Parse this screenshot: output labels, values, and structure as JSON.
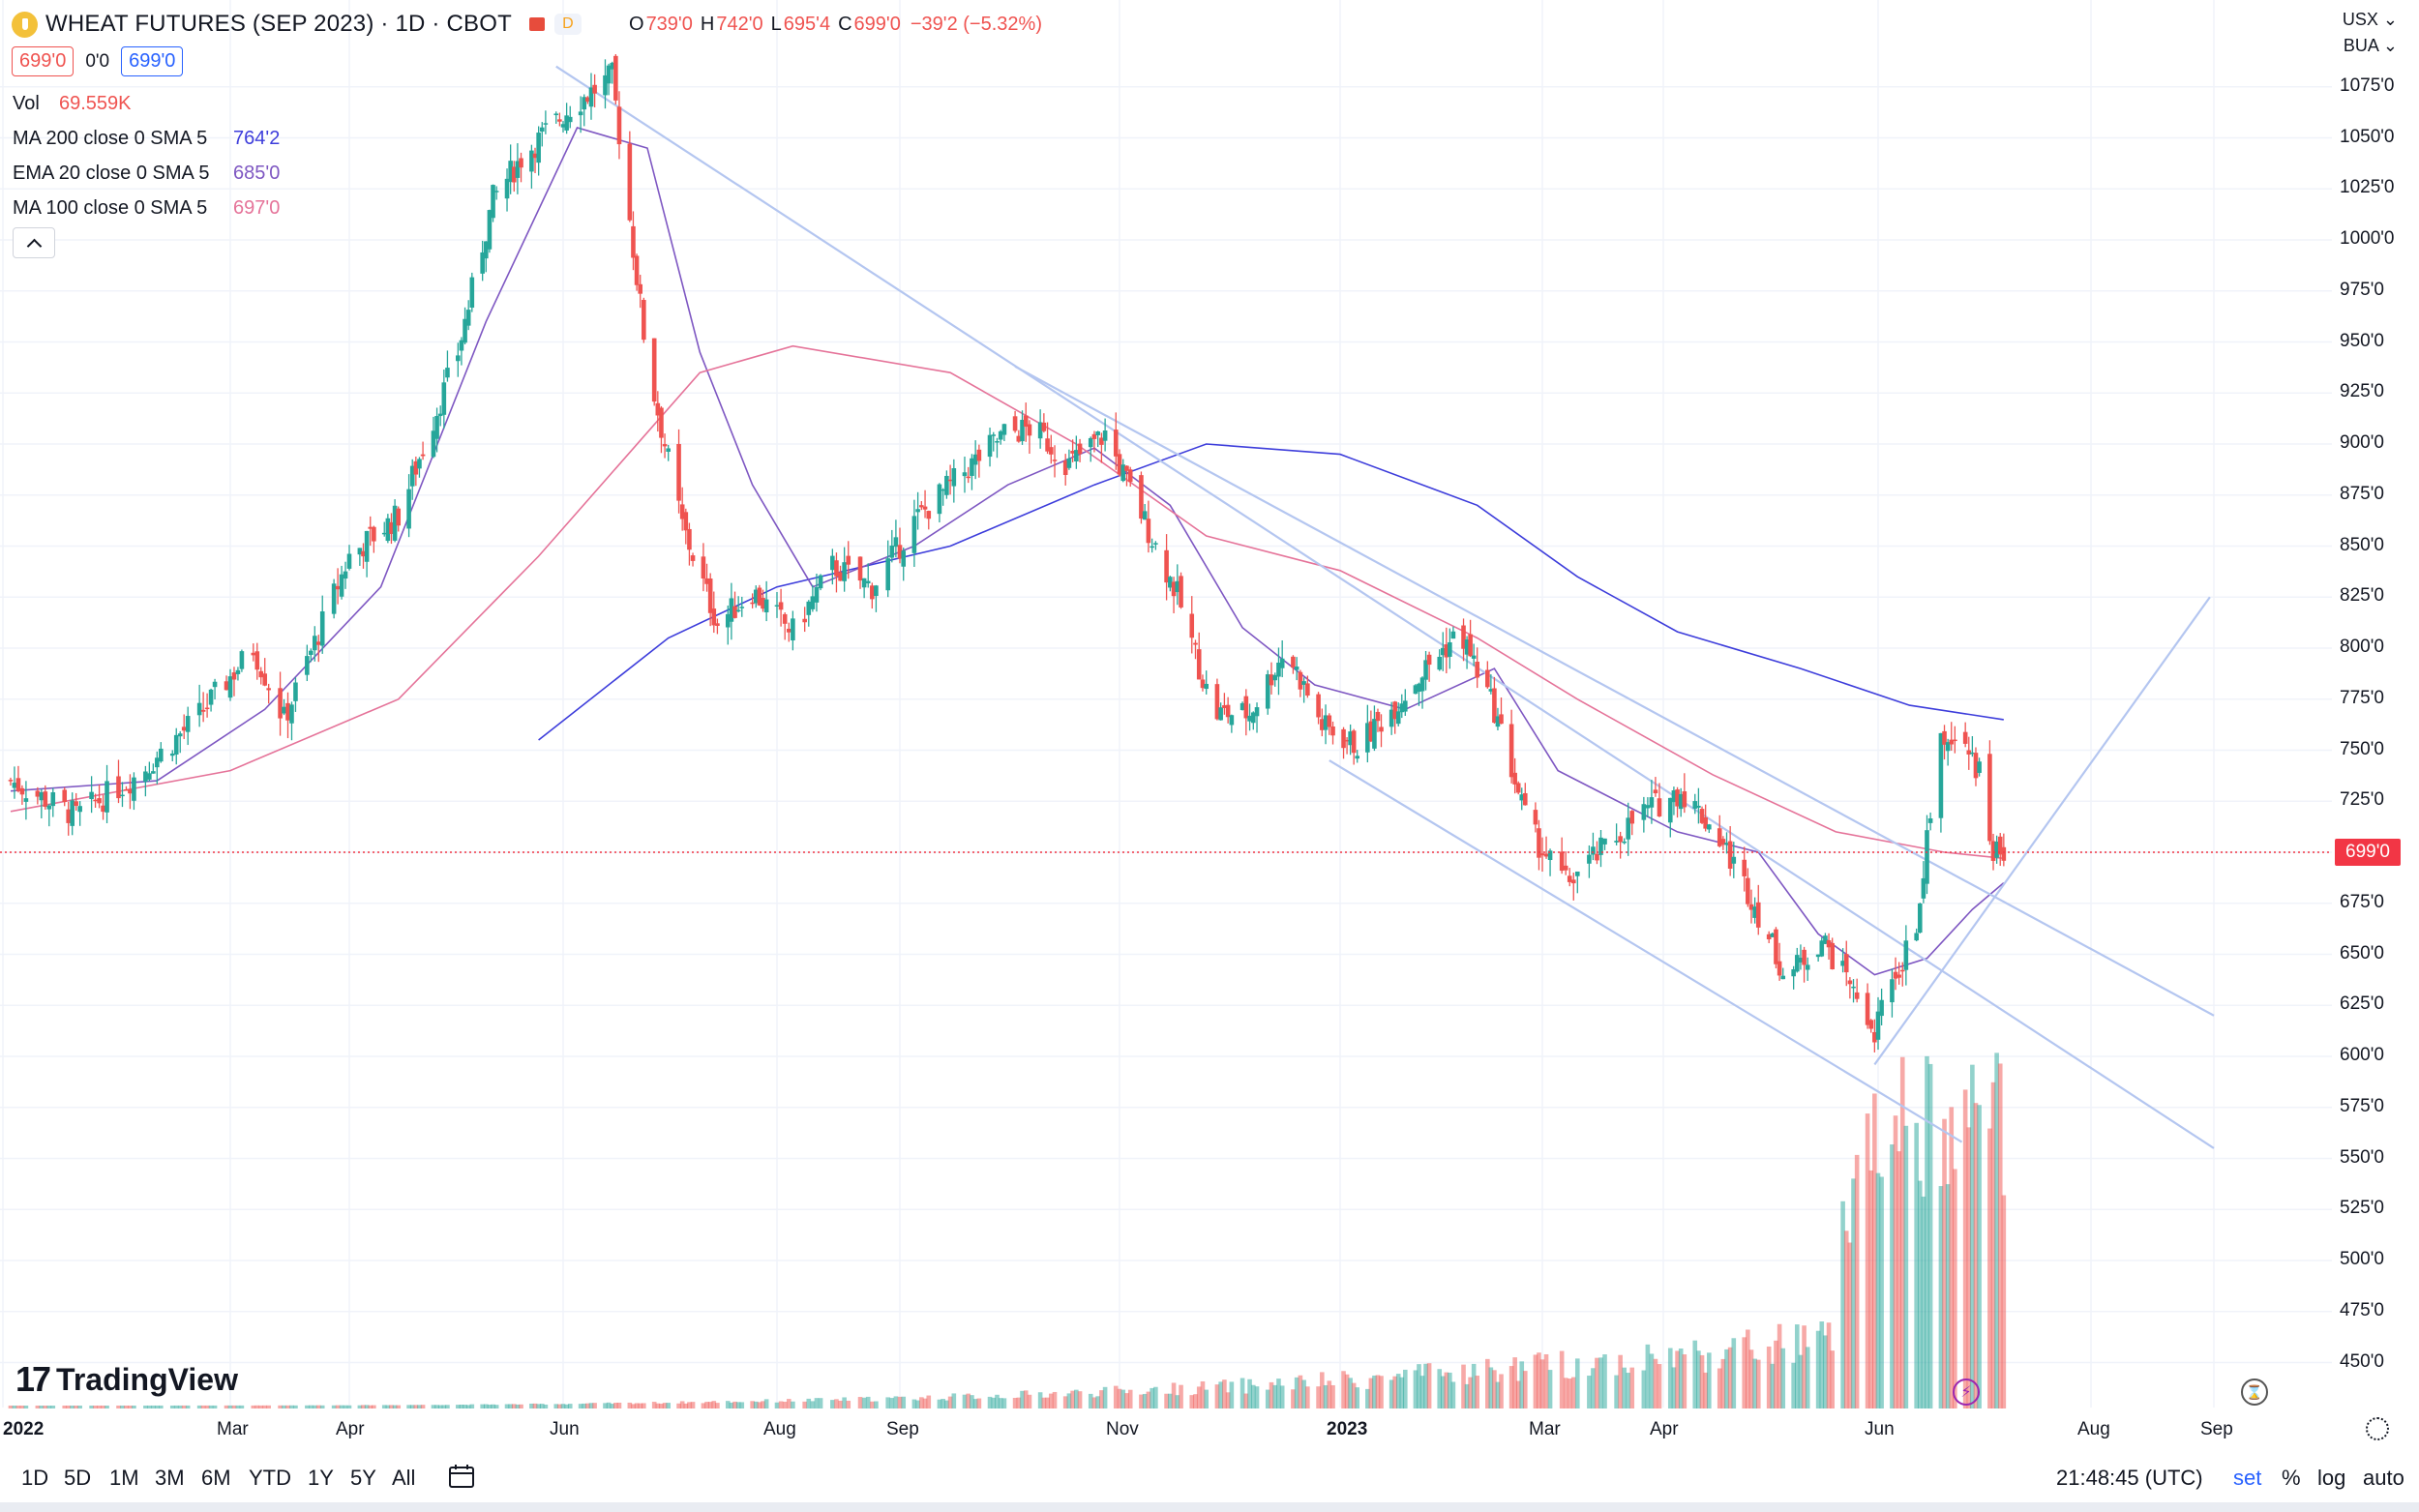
{
  "header": {
    "title": "WHEAT FUTURES (SEP 2023) · 1D · CBOT",
    "badge_letter": "D",
    "ohlc": [
      {
        "label": "O",
        "value": "739'0"
      },
      {
        "label": "H",
        "value": "742'0"
      },
      {
        "label": "L",
        "value": "695'4"
      },
      {
        "label": "C",
        "value": "699'0"
      },
      {
        "label": "",
        "value": "−39'2 (−5.32%)"
      }
    ],
    "bid": "699'0",
    "spread": "0'0",
    "ask": "699'0"
  },
  "indicators": [
    {
      "name": "Vol",
      "value": "69.559K",
      "color": "#ef5350"
    },
    {
      "name": "MA 200 close 0 SMA 5",
      "value": "764'2",
      "color": "#3d3ddb"
    },
    {
      "name": "EMA 20 close 0 SMA 5",
      "value": "685'0",
      "color": "#7e57c2"
    },
    {
      "name": "MA 100 close 0 SMA 5",
      "value": "697'0",
      "color": "#e57399"
    }
  ],
  "price_axis": {
    "currency": "USX",
    "unit": "BUA",
    "ticks": [
      "1075'0",
      "1050'0",
      "1025'0",
      "1000'0",
      "975'0",
      "950'0",
      "925'0",
      "900'0",
      "875'0",
      "850'0",
      "825'0",
      "800'0",
      "775'0",
      "750'0",
      "725'0",
      "700'0",
      "675'0",
      "650'0",
      "625'0",
      "600'0",
      "575'0",
      "550'0",
      "525'0",
      "500'0",
      "475'0",
      "450'0"
    ],
    "last_price_label": "699'0"
  },
  "time_axis": {
    "labels": [
      "2022",
      "Mar",
      "Apr",
      "Jun",
      "Aug",
      "Sep",
      "Nov",
      "2023",
      "Mar",
      "Apr",
      "Jun",
      "Aug",
      "Sep"
    ]
  },
  "branding": {
    "name": "TradingView"
  },
  "bottom_bar": {
    "ranges": [
      "1D",
      "5D",
      "1M",
      "3M",
      "6M",
      "YTD",
      "1Y",
      "5Y",
      "All"
    ],
    "clock": "21:48:45 (UTC)",
    "session": "set",
    "percent": "%",
    "log": "log",
    "auto": "auto"
  },
  "colors": {
    "up": "#26a69a",
    "down": "#ef5350",
    "trendline": "#b4c6f0",
    "grid": "#f0f3fa"
  },
  "chart_data": {
    "type": "candlestick",
    "title": "WHEAT FUTURES (SEP 2023) · 1D · CBOT",
    "y_unit": "USX/BUA",
    "ylim": [
      435,
      1090
    ],
    "grid": true,
    "close_series": {
      "dates": [
        "2022-01-03",
        "2022-01-20",
        "2022-02-05",
        "2022-02-20",
        "2022-03-07",
        "2022-03-15",
        "2022-04-01",
        "2022-04-15",
        "2022-05-02",
        "2022-05-12",
        "2022-05-20",
        "2022-06-03",
        "2022-06-15",
        "2022-06-25",
        "2022-07-05",
        "2022-07-15",
        "2022-07-25",
        "2022-08-05",
        "2022-08-15",
        "2022-08-25",
        "2022-09-05",
        "2022-09-15",
        "2022-09-30",
        "2022-10-08",
        "2022-10-18",
        "2022-10-28",
        "2022-11-07",
        "2022-11-17",
        "2022-11-27",
        "2022-12-07",
        "2022-12-17",
        "2022-12-27",
        "2023-01-06",
        "2023-01-16",
        "2023-01-26",
        "2023-02-05",
        "2023-02-15",
        "2023-02-25",
        "2023-03-07",
        "2023-03-17",
        "2023-03-27",
        "2023-04-06",
        "2023-04-16",
        "2023-04-26",
        "2023-05-06",
        "2023-05-16",
        "2023-05-26",
        "2023-05-31",
        "2023-06-06",
        "2023-06-12",
        "2023-06-18",
        "2023-06-25",
        "2023-06-30",
        "2023-07-04",
        "2023-07-07"
      ],
      "closes": [
        735,
        718,
        738,
        765,
        800,
        765,
        845,
        865,
        945,
        1020,
        1040,
        1065,
        1080,
        940,
        860,
        812,
        828,
        808,
        840,
        830,
        862,
        880,
        905,
        908,
        890,
        905,
        866,
        826,
        768,
        768,
        800,
        762,
        752,
        770,
        790,
        808,
        770,
        712,
        685,
        702,
        720,
        730,
        710,
        678,
        638,
        658,
        628,
        612,
        640,
        665,
        752,
        755,
        738,
        702,
        699
      ]
    },
    "moving_averages": [
      {
        "name": "MA 200 close 0 SMA 5",
        "last": "764'2",
        "points": [
          [
            "2022-05-25",
            755
          ],
          [
            "2022-07-01",
            805
          ],
          [
            "2022-08-01",
            830
          ],
          [
            "2022-09-15",
            850
          ],
          [
            "2022-10-25",
            880
          ],
          [
            "2022-11-25",
            900
          ],
          [
            "2023-01-01",
            895
          ],
          [
            "2023-02-10",
            870
          ],
          [
            "2023-03-10",
            835
          ],
          [
            "2023-04-05",
            808
          ],
          [
            "2023-05-10",
            790
          ],
          [
            "2023-06-10",
            772
          ],
          [
            "2023-07-07",
            765
          ]
        ]
      },
      {
        "name": "EMA 20 close 0 SMA 5",
        "last": "685'0",
        "points": [
          [
            "2022-01-03",
            730
          ],
          [
            "2022-02-10",
            735
          ],
          [
            "2022-03-10",
            770
          ],
          [
            "2022-04-10",
            830
          ],
          [
            "2022-05-10",
            960
          ],
          [
            "2022-06-05",
            1055
          ],
          [
            "2022-06-25",
            1045
          ],
          [
            "2022-07-10",
            945
          ],
          [
            "2022-07-25",
            880
          ],
          [
            "2022-08-10",
            830
          ],
          [
            "2022-09-05",
            850
          ],
          [
            "2022-10-01",
            880
          ],
          [
            "2022-10-25",
            898
          ],
          [
            "2022-11-15",
            870
          ],
          [
            "2022-12-05",
            810
          ],
          [
            "2022-12-25",
            782
          ],
          [
            "2023-01-20",
            770
          ],
          [
            "2023-02-15",
            790
          ],
          [
            "2023-03-05",
            740
          ],
          [
            "2023-04-05",
            710
          ],
          [
            "2023-04-28",
            700
          ],
          [
            "2023-05-15",
            660
          ],
          [
            "2023-05-31",
            640
          ],
          [
            "2023-06-15",
            648
          ],
          [
            "2023-06-28",
            672
          ],
          [
            "2023-07-07",
            685
          ]
        ]
      },
      {
        "name": "MA 100 close 0 SMA 5",
        "last": "697'0",
        "points": [
          [
            "2022-01-03",
            720
          ],
          [
            "2022-03-01",
            740
          ],
          [
            "2022-04-15",
            775
          ],
          [
            "2022-05-25",
            845
          ],
          [
            "2022-07-10",
            935
          ],
          [
            "2022-08-05",
            948
          ],
          [
            "2022-09-15",
            935
          ],
          [
            "2022-10-20",
            900
          ],
          [
            "2022-11-25",
            855
          ],
          [
            "2023-01-01",
            838
          ],
          [
            "2023-02-10",
            805
          ],
          [
            "2023-03-10",
            775
          ],
          [
            "2023-04-15",
            738
          ],
          [
            "2023-05-20",
            710
          ],
          [
            "2023-06-20",
            700
          ],
          [
            "2023-07-07",
            697
          ]
        ]
      }
    ],
    "trendlines": [
      {
        "from": [
          "2022-05-30",
          1085
        ],
        "to": [
          "2023-09-01",
          555
        ]
      },
      {
        "from": [
          "2022-10-03",
          938
        ],
        "to": [
          "2023-09-01",
          620
        ]
      },
      {
        "from": [
          "2022-12-29",
          745
        ],
        "to": [
          "2023-06-25",
          558
        ]
      },
      {
        "from": [
          "2023-05-31",
          596
        ],
        "to": [
          "2023-08-31",
          825
        ]
      }
    ],
    "volume_peak": "69.559K"
  }
}
